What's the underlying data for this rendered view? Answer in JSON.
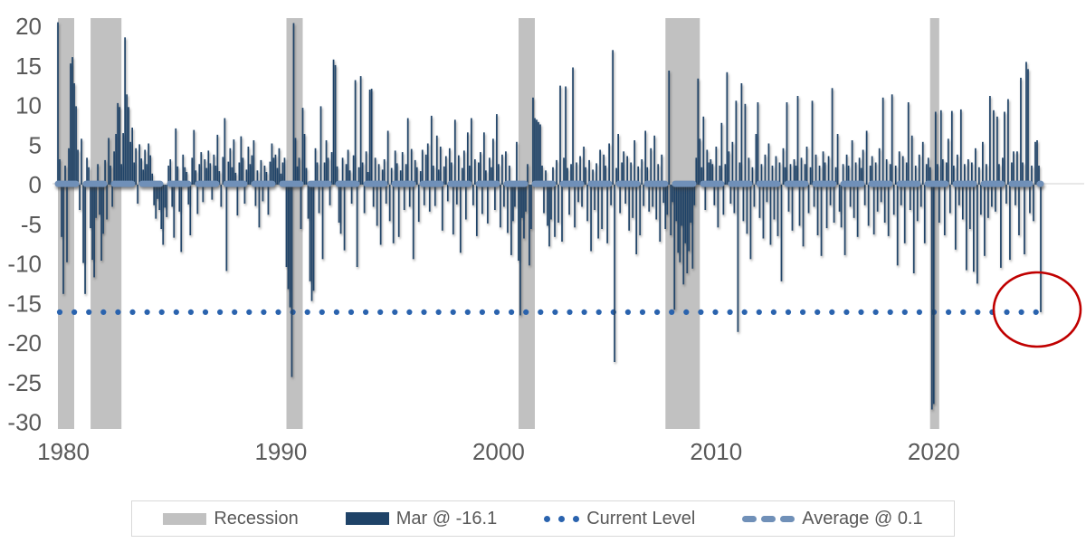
{
  "colors": {
    "bar": "#1F4368",
    "recession": "#C1C1C1",
    "current_level": "#2A63AE",
    "average": "#7090B8",
    "annotation": "#C00000",
    "axis_text": "#595959",
    "axis_line": "#D9D9D9",
    "background": "#FFFFFF"
  },
  "legend": {
    "items": [
      {
        "label": "Recession",
        "swatch": "recession-band"
      },
      {
        "label": "Mar @ -16.1",
        "swatch": "bar"
      },
      {
        "label": "Current Level",
        "swatch": "dotted-line"
      },
      {
        "label": "Average @ 0.1",
        "swatch": "dashed-line"
      }
    ]
  },
  "chart_data": {
    "type": "bar",
    "title": "",
    "frequency": "monthly",
    "x_start": "1980-01",
    "x_end": "2025-03",
    "latest_point_label": "Mar @ -16.1",
    "current_level": -16.1,
    "average": 0.1,
    "ylim": [
      -30,
      20.6
    ],
    "yticks": [
      20,
      15,
      10,
      5,
      0,
      -5,
      -10,
      -15,
      -20,
      -25,
      -30
    ],
    "xticks": [
      1980,
      1990,
      2000,
      2010,
      2020
    ],
    "grid": false,
    "legend_position": "bottom",
    "recessions": [
      [
        1980.0,
        1980.75
      ],
      [
        1981.5,
        1982.92
      ],
      [
        1990.5,
        1991.25
      ],
      [
        2001.17,
        2001.92
      ],
      [
        2007.92,
        2009.5
      ],
      [
        2020.08,
        2020.5
      ]
    ],
    "annotation": {
      "shape": "ellipse",
      "target": "2025-03",
      "value": -16.1
    },
    "series": [
      {
        "name": "Mar @ -16.1",
        "values": [
          20.5,
          3.2,
          -6.6,
          -13.8,
          2.4,
          -9.8,
          4.6,
          15.3,
          16.1,
          12.8,
          9.9,
          4.4,
          -3.2,
          5.8,
          -9.9,
          -13.8,
          3.4,
          2.2,
          -5.5,
          -9.5,
          -11.7,
          -4.2,
          2.6,
          -3.8,
          -9.6,
          -6.2,
          3.1,
          -4.4,
          5.9,
          2.4,
          -2.8,
          4.2,
          6.4,
          10.3,
          9.8,
          2.6,
          6.5,
          18.6,
          11.4,
          9.8,
          5.4,
          7.2,
          2.8,
          4.6,
          -2.4,
          5.1,
          3.3,
          1.9,
          4.4,
          2.6,
          5.2,
          3.7,
          1.4,
          -2.6,
          -4.3,
          -1.8,
          -3.2,
          -5.6,
          -7.6,
          -2.9,
          -4.1,
          2.4,
          3.2,
          -2.8,
          -6.7,
          7.1,
          2.3,
          -3.4,
          -8.5,
          3.8,
          2.2,
          1.6,
          -2.5,
          -6.4,
          3.4,
          6.9,
          1.8,
          -3.7,
          2.6,
          4.1,
          -2.2,
          3.2,
          2.1,
          4.3,
          2.7,
          -1.9,
          3.8,
          2.4,
          6.3,
          1.7,
          -2.8,
          3.5,
          8.4,
          -10.9,
          2.9,
          4.6,
          2.2,
          5.7,
          1.5,
          -3.9,
          2.8,
          6.1,
          3.4,
          -2.4,
          1.9,
          4.8,
          2.6,
          3.7,
          5.6,
          -2.7,
          1.8,
          -5.4,
          3.1,
          -2.1,
          2.4,
          1.6,
          -3.8,
          2.9,
          5.2,
          3.4,
          3.8,
          2.1,
          4.6,
          1.4,
          2.8,
          3.4,
          -10.4,
          -13.2,
          -15.5,
          -24.3,
          20.4,
          5.9,
          2.3,
          3.4,
          -5.6,
          9.7,
          6.4,
          2.1,
          -4.3,
          -12.2,
          -14.7,
          -13.4,
          4.6,
          2.8,
          -3.6,
          9.9,
          -9.4,
          2.8,
          5.6,
          3.4,
          -2.6,
          4.1,
          15.8,
          15.1,
          2.3,
          -4.8,
          -6.2,
          3.4,
          -8.3,
          2.6,
          4.4,
          1.8,
          -2.4,
          3.7,
          13.2,
          -10.4,
          2.2,
          13.7,
          2.8,
          -3.6,
          4.2,
          1.6,
          12.0,
          12.1,
          -2.8,
          3.4,
          -5.2,
          2.6,
          -7.6,
          1.9,
          3.2,
          -2.4,
          6.8,
          -4.6,
          2.1,
          -7.4,
          4.3,
          2.7,
          -6.6,
          1.8,
          4.1,
          -3.2,
          2.6,
          8.4,
          -2.8,
          4.5,
          -9.4,
          3.1,
          2.2,
          -4.7,
          1.7,
          4.4,
          -2.6,
          3.8,
          5.2,
          -3.4,
          8.7,
          2.4,
          -2.7,
          6.2,
          1.9,
          4.8,
          -5.8,
          2.3,
          3.6,
          -2.1,
          4.6,
          2.8,
          -6.3,
          8.2,
          -2.5,
          3.7,
          -8.6,
          2.1,
          4.3,
          -4.4,
          6.6,
          2.4,
          8.4,
          -2.6,
          3.2,
          -6.5,
          2.8,
          4.1,
          -3.7,
          6.6,
          1.8,
          -4.9,
          3.4,
          2.2,
          5.8,
          -3.2,
          8.9,
          2.6,
          -5.4,
          3.8,
          -2.8,
          4.2,
          -6.1,
          2.4,
          -8.9,
          -4.6,
          -2.8,
          5.4,
          -9.6,
          -16.5,
          -4.2,
          -6.8,
          -3.4,
          2.6,
          -10.2,
          -5.6,
          11.0,
          8.4,
          8.2,
          7.9,
          7.6,
          2.4,
          -3.6,
          1.8,
          -5.2,
          -7.8,
          -4.4,
          2.2,
          -6.6,
          3.1,
          -4.8,
          12.5,
          -7.2,
          3.4,
          12.4,
          2.1,
          -3.8,
          2.6,
          14.8,
          -5.4,
          2.8,
          -2.2,
          3.6,
          -2.8,
          4.8,
          2.2,
          -4.6,
          3.1,
          -8.4,
          1.9,
          -3.2,
          2.7,
          -6.8,
          4.4,
          -5.6,
          3.8,
          2.4,
          -7.4,
          5.2,
          -2.6,
          17.0,
          -22.4,
          2.1,
          6.4,
          -3.6,
          2.8,
          4.2,
          -2.4,
          3.6,
          -5.8,
          2.8,
          -4.2,
          5.6,
          -8.8,
          2.3,
          -6.4,
          3.2,
          -2.7,
          6.8,
          2.2,
          -3.4,
          4.6,
          -2.8,
          6.2,
          -4.4,
          2.6,
          -7.2,
          3.8,
          -2.3,
          -5.6,
          -3.8,
          14.4,
          -6.4,
          -2.2,
          -15.8,
          -4.6,
          -8.6,
          -9.8,
          -5.2,
          -12.6,
          -7.4,
          -11.2,
          -8.4,
          -4.8,
          -10.6,
          -2.6,
          3.4,
          13.4,
          5.8,
          2.2,
          8.6,
          -3.2,
          4.4,
          2.8,
          3.2,
          2.6,
          -2.6,
          4.8,
          -5.4,
          2.4,
          7.8,
          -3.8,
          2.6,
          14.2,
          4.2,
          -2.4,
          5.4,
          -3.6,
          10.6,
          -18.6,
          2.8,
          12.8,
          -4.6,
          10.2,
          -6.2,
          3.4,
          -9.4,
          2.2,
          -2.8,
          6.4,
          10.4,
          -4.2,
          2.6,
          -6.8,
          3.8,
          -2.2,
          5.2,
          -7.6,
          2.4,
          -4.4,
          3.6,
          -6.5,
          2.8,
          -12.2,
          4.6,
          2.2,
          10.4,
          -3.4,
          2.6,
          -5.8,
          3.2,
          2.4,
          11.2,
          -5.2,
          3.4,
          -7.8,
          2.6,
          4.8,
          -3.6,
          2.2,
          10.6,
          -2.8,
          3.8,
          -6.4,
          2.4,
          -9.0,
          4.2,
          2.8,
          -5.5,
          3.6,
          -2.6,
          12.2,
          -4.8,
          2.2,
          6.4,
          -3.4,
          -5.4,
          2.6,
          -8.9,
          3.8,
          2.4,
          -2.8,
          5.6,
          -4.2,
          2.8,
          -6.6,
          3.4,
          2.1,
          4.4,
          -2.6,
          6.8,
          -5.2,
          2.4,
          3.6,
          -6.3,
          2.8,
          -3.4,
          4.6,
          -2.2,
          11.0,
          -4.8,
          3.2,
          -6.5,
          2.6,
          11.4,
          -3.8,
          2.4,
          -10.2,
          4.2,
          -2.6,
          3.6,
          -7.4,
          2.8,
          10.4,
          -3.2,
          6.2,
          -11.2,
          2.4,
          -4.6,
          3.8,
          -2.8,
          5.4,
          -7.4,
          2.6,
          3.4,
          2.2,
          -28.4,
          -27.7,
          9.2,
          2.6,
          -4.8,
          9.4,
          3.2,
          -6.4,
          2.8,
          5.8,
          -3.6,
          9.3,
          2.4,
          -8.2,
          3.8,
          -2.6,
          9.5,
          -4.4,
          2.6,
          -10.8,
          3.2,
          -5.6,
          2.8,
          -11.0,
          4.6,
          -12.5,
          2.2,
          -3.8,
          5.4,
          -9.0,
          2.6,
          -4.2,
          11.2,
          -2.8,
          9.4,
          -3.4,
          8.6,
          2.6,
          -10.5,
          3.4,
          9.2,
          -2.4,
          10.8,
          -9.5,
          2.8,
          4.2,
          -2.6,
          4.2,
          -6.4,
          13.5,
          2.8,
          -8.8,
          15.5,
          14.6,
          -3.6,
          2.4,
          -4.6,
          5.4,
          5.6,
          2.4,
          -16.1
        ]
      }
    ]
  }
}
